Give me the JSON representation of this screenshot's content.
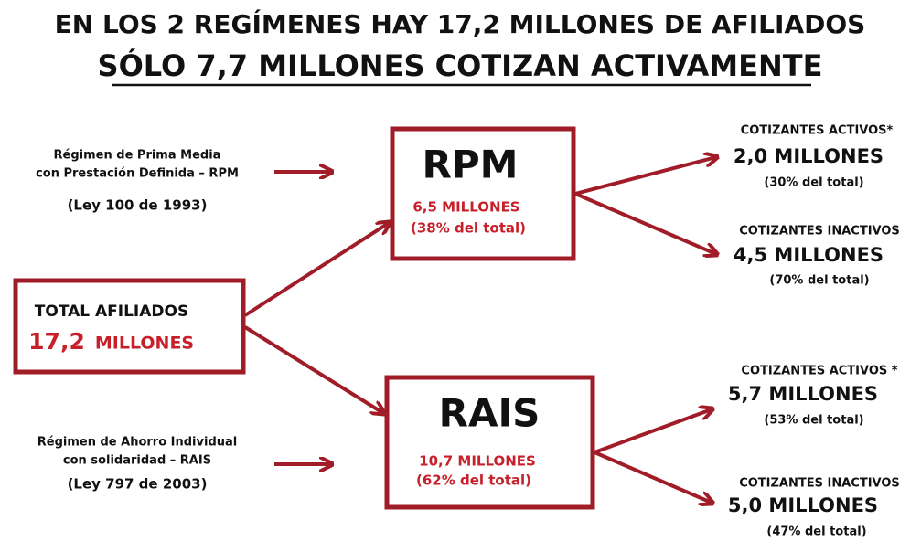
{
  "title": {
    "line1": "EN LOS 2 REGÍMENES HAY 17,2 MILLONES DE AFILIADOS",
    "line2": "SÓLO 7,7 MILLONES COTIZAN ACTIVAMENTE"
  },
  "total": {
    "label": "TOTAL  AFILIADOS",
    "number": "17,2",
    "unit": "MILLONES"
  },
  "regimes": [
    {
      "name": "RPM",
      "amount": "6,5 MILLONES",
      "share": "(38% del total)",
      "description": [
        "Régimen de Prima Media",
        "con Prestación Definida – RPM"
      ],
      "law": "(Ley 100 de 1993)",
      "outcomes": [
        {
          "label": "COTIZANTES ACTIVOS*",
          "amount": "2,0 MILLONES",
          "share": "(30% del total)"
        },
        {
          "label": "COTIZANTES INACTIVOS",
          "amount": "4,5 MILLONES",
          "share": "(70% del total)"
        }
      ]
    },
    {
      "name": "RAIS",
      "amount": "10,7 MILLONES",
      "share": "(62% del total)",
      "description": [
        "Régimen de Ahorro Individual",
        "con solidaridad – RAIS"
      ],
      "law": "(Ley 797 de 2003)",
      "outcomes": [
        {
          "label": "COTIZANTES ACTIVOS *",
          "amount": "5,7 MILLONES",
          "share": "(53% del total)"
        },
        {
          "label": "COTIZANTES INACTIVOS",
          "amount": "5,0 MILLONES",
          "share": "(47% del total)"
        }
      ]
    }
  ]
}
